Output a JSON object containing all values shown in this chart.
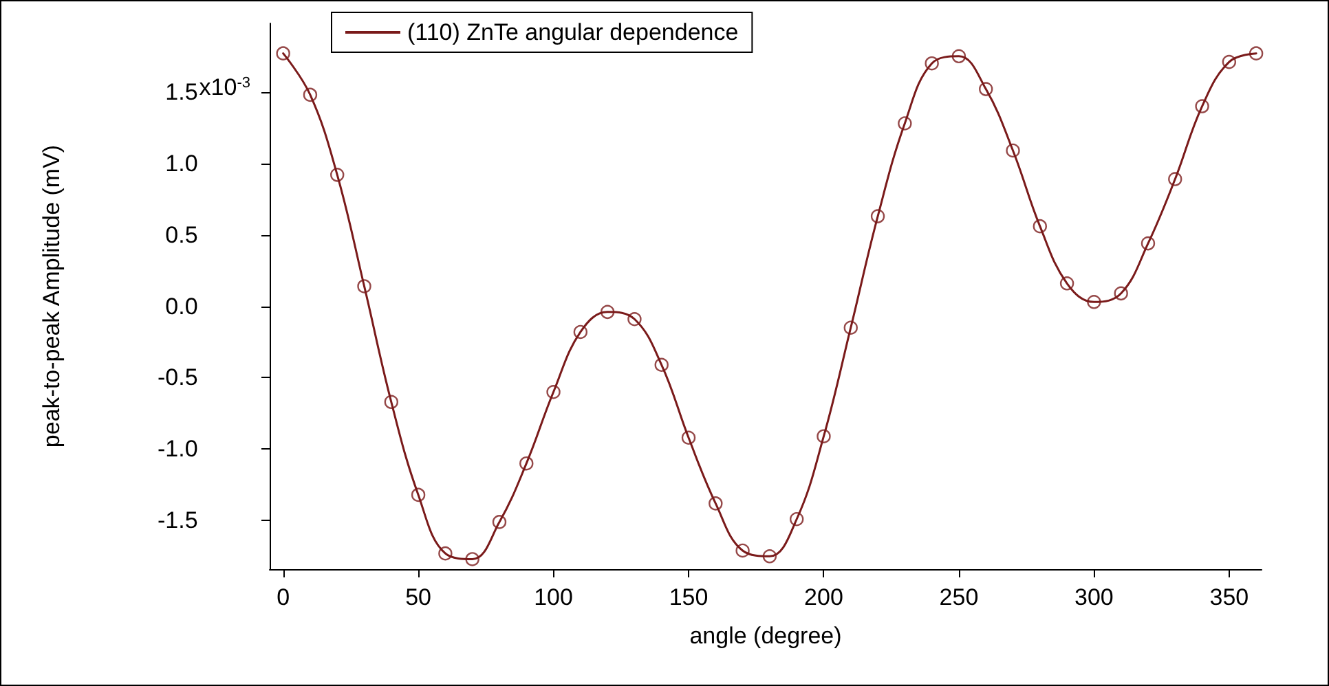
{
  "chart_data": {
    "type": "scatter",
    "xlabel": "angle (degree)",
    "ylabel": "peak-to-peak Amplitude (mV)",
    "xlim": [
      -5,
      362
    ],
    "xticks": [
      0,
      50,
      100,
      150,
      200,
      250,
      300,
      350
    ],
    "ylim": [
      -1.84,
      1.98
    ],
    "yticks": [
      -1.5,
      {
        "value": -1,
        "label": "-1.0"
      },
      -0.5,
      {
        "value": 0,
        "label": "0.0"
      },
      0.5,
      {
        "value": 1,
        "label": "1.0"
      },
      1.5
    ],
    "annotations": [
      "x10$^{-3}$"
    ],
    "x": [
      0,
      10,
      20,
      30,
      40,
      50,
      60,
      70,
      80,
      90,
      100,
      110,
      120,
      130,
      140,
      150,
      160,
      170,
      180,
      190,
      200,
      210,
      220,
      230,
      240,
      250,
      260,
      270,
      280,
      290,
      300,
      310,
      320,
      330,
      340,
      350,
      360
    ],
    "grid": false,
    "legend": "top",
    "marker": "circle",
    "series": [
      {
        "color": "#7a1a1a",
        "values": [
          1.77,
          1.48,
          0.92,
          0.14,
          -0.67,
          -1.32,
          -1.73,
          -1.77,
          -1.51,
          -1.1,
          -0.6,
          -0.18,
          -0.04,
          -0.09,
          -0.41,
          -0.92,
          -1.38,
          -1.71,
          -1.75,
          -1.49,
          -0.91,
          -0.15,
          0.63,
          1.28,
          1.7,
          1.75,
          1.52,
          1.09,
          0.56,
          0.16,
          0.03,
          0.09,
          0.44,
          0.89,
          1.4,
          1.71,
          1.77
        ]
      },
      {
        "type": "line",
        "marker": "none",
        "name": "(110) ZnTe angular dependence",
        "color": "#7a1a1a",
        "line_style": "solid",
        "values": [
          1.77,
          1.48,
          0.92,
          0.14,
          -0.67,
          -1.32,
          -1.73,
          -1.77,
          -1.51,
          -1.1,
          -0.6,
          -0.18,
          -0.04,
          -0.09,
          -0.41,
          -0.92,
          -1.38,
          -1.71,
          -1.75,
          -1.49,
          -0.91,
          -0.15,
          0.63,
          1.28,
          1.7,
          1.75,
          1.52,
          1.09,
          0.56,
          0.16,
          0.03,
          0.09,
          0.44,
          0.89,
          1.4,
          1.71,
          1.77
        ]
      }
    ]
  }
}
